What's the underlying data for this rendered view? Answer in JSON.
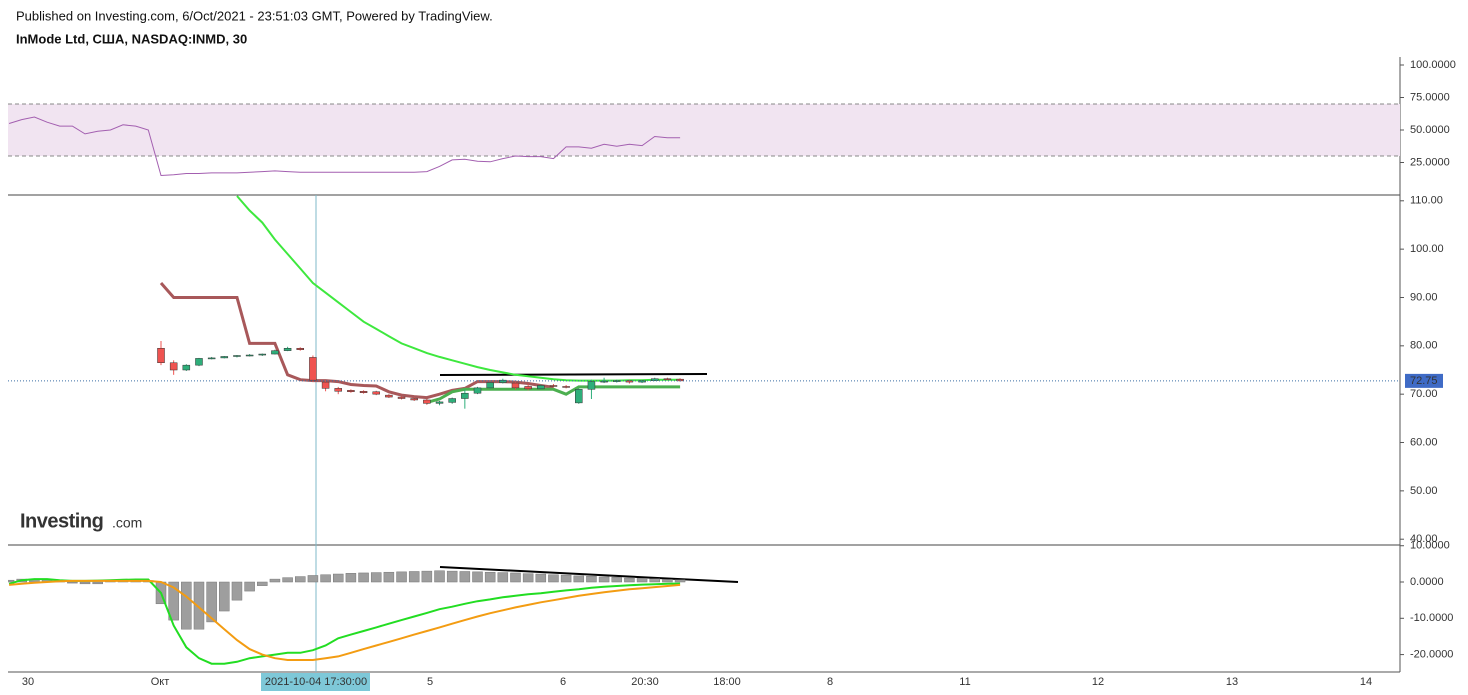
{
  "header": {
    "published": "Published on Investing.com, 6/Oct/2021 - 23:51:03 GMT, Powered by TradingView.",
    "symbol": "InMode Ltd, США, NASDAQ:INMD, 30"
  },
  "logo": {
    "name": "Investing",
    "suffix": ".com"
  },
  "x_labels": [
    "30",
    "Окт",
    "5",
    "6",
    "20:30",
    "18:00",
    "8",
    "11",
    "12",
    "13",
    "14"
  ],
  "crosshair_label": "2021-10-04 17:30:00",
  "chart_data": [
    {
      "type": "line",
      "ylim": [
        0,
        106.15
      ],
      "band": [
        30,
        70
      ],
      "band_color": "#f1e4f1",
      "yticks": [
        {
          "value": 25,
          "label": "25.0000"
        },
        {
          "value": 50,
          "label": "50.0000"
        },
        {
          "value": 75,
          "label": "75.0000"
        },
        {
          "value": 100,
          "label": "100.0000"
        }
      ],
      "series": [
        {
          "type": "line",
          "color": "#a35fb0",
          "width": 1,
          "values": [
            55,
            58,
            60,
            56,
            53,
            53,
            47,
            49,
            50,
            54,
            53,
            50,
            15,
            15.5,
            16.5,
            16.5,
            17,
            17,
            17,
            17.5,
            18,
            18.5,
            18,
            17.5,
            17.5,
            17.5,
            17.5,
            17.5,
            17.5,
            17.5,
            17.5,
            17.5,
            17.5,
            18,
            22,
            27,
            27.5,
            26,
            25.5,
            28,
            30,
            29.5,
            29.5,
            28,
            37,
            37,
            36,
            39,
            37.5,
            39,
            38,
            45,
            44,
            44
          ]
        }
      ]
    },
    {
      "type": "candlestick",
      "ylim": [
        38.8,
        111.2
      ],
      "last_price": 72.75,
      "yticks": [
        {
          "value": 40,
          "label": "40.00"
        },
        {
          "value": 50,
          "label": "50.00"
        },
        {
          "value": 60,
          "label": "60.00"
        },
        {
          "value": 70,
          "label": "70.00"
        },
        {
          "value": 80,
          "label": "80.00"
        },
        {
          "value": 90,
          "label": "90.00"
        },
        {
          "value": 100,
          "label": "100.00"
        },
        {
          "value": 110,
          "label": "110.00"
        }
      ],
      "series": [
        {
          "type": "line",
          "color": "#a8585a",
          "width": 3,
          "values": [
            null,
            null,
            null,
            null,
            null,
            null,
            null,
            null,
            null,
            null,
            null,
            null,
            93,
            90,
            90,
            90,
            90,
            90,
            90,
            80.5,
            80.5,
            80.5,
            74,
            73,
            72.8,
            72.8,
            72.6,
            72,
            71.8,
            71.7,
            70.5,
            69.8,
            69.5,
            69.3,
            70,
            70.8,
            71.2,
            72.6,
            72.6,
            72.6,
            72.5,
            72.2,
            71.8,
            71.4,
            null,
            null,
            null,
            null,
            null,
            null,
            null,
            null,
            null,
            null
          ]
        },
        {
          "type": "line",
          "color": "#3ee83e",
          "width": 2,
          "values": [
            null,
            null,
            null,
            null,
            null,
            null,
            null,
            null,
            null,
            null,
            null,
            null,
            null,
            null,
            null,
            null,
            null,
            null,
            111,
            108,
            105.5,
            102,
            99,
            96,
            93,
            91,
            89,
            87,
            85,
            83.5,
            82,
            80.5,
            79.5,
            78.5,
            77.7,
            77,
            76.3,
            75.6,
            75,
            74.5,
            74,
            73.7,
            73.4,
            73.1,
            72.9,
            72.8,
            72.8,
            72.8,
            72.8,
            72.9,
            72.9,
            73,
            73,
            73
          ]
        },
        {
          "type": "line",
          "color": "#4caf50",
          "width": 3,
          "values": [
            null,
            null,
            null,
            null,
            null,
            null,
            null,
            null,
            null,
            null,
            null,
            null,
            null,
            null,
            null,
            null,
            null,
            null,
            null,
            null,
            null,
            null,
            null,
            null,
            null,
            null,
            null,
            null,
            null,
            null,
            null,
            null,
            null,
            68.3,
            69,
            70.5,
            71,
            71,
            71,
            71,
            71,
            71,
            71,
            71,
            70,
            71.5,
            71.5,
            71.5,
            71.5,
            71.5,
            71.5,
            71.5,
            71.5,
            71.5
          ]
        },
        {
          "type": "candlestick",
          "up_color": "#2eae7a",
          "down_color": "#ef5350",
          "open": [
            null,
            null,
            null,
            null,
            null,
            null,
            null,
            null,
            null,
            null,
            null,
            null,
            79.5,
            76.5,
            75,
            76,
            77.4,
            77.5,
            77.8,
            78,
            78.1,
            78.3,
            79,
            79.5,
            77.6,
            72.5,
            71.2,
            70.8,
            70.6,
            70.5,
            69.8,
            69.4,
            69.1,
            68.8,
            68.1,
            68.3,
            69.1,
            70.2,
            71.3,
            72.4,
            72.3,
            71.6,
            71.1,
            71.8,
            71.6,
            68.2,
            71,
            72.6,
            72.6,
            72.8,
            72.5,
            72.8,
            73.2,
            73.1
          ],
          "high": [
            null,
            null,
            null,
            null,
            null,
            null,
            null,
            null,
            null,
            null,
            null,
            null,
            81,
            77,
            76.2,
            77.5,
            77.7,
            77.9,
            78.1,
            78.3,
            78.4,
            79.2,
            79.8,
            79.7,
            78,
            72.8,
            71.5,
            71,
            70.8,
            70.7,
            70,
            69.6,
            69.3,
            69,
            68.6,
            69.3,
            71,
            71.5,
            72.6,
            73.2,
            72.6,
            72,
            72,
            72.1,
            71.9,
            71.2,
            73,
            73.4,
            73,
            73,
            72.9,
            73.4,
            73.4,
            73.3
          ],
          "low": [
            null,
            null,
            null,
            null,
            null,
            null,
            null,
            null,
            null,
            null,
            null,
            null,
            76,
            74,
            74.8,
            75.8,
            77.2,
            77.4,
            77.6,
            77.8,
            77.9,
            78.2,
            78.9,
            79,
            72.6,
            70.6,
            70,
            70.3,
            70.1,
            69.8,
            69.2,
            68.9,
            68.6,
            67.8,
            67.7,
            68,
            67,
            70,
            71.1,
            72.2,
            71,
            70.8,
            71,
            71.4,
            71.2,
            68,
            69,
            72.3,
            72.4,
            72.2,
            72.3,
            72.7,
            72.9,
            72.6
          ],
          "close": [
            null,
            null,
            null,
            null,
            null,
            null,
            null,
            null,
            null,
            null,
            null,
            null,
            76.5,
            75,
            76,
            77.4,
            77.5,
            77.8,
            78,
            78.1,
            78.3,
            79,
            79.5,
            79.2,
            72.9,
            71.2,
            70.6,
            70.5,
            70.3,
            70,
            69.4,
            69.1,
            68.8,
            68.1,
            68.4,
            69.1,
            70.2,
            71.3,
            72.4,
            72.9,
            71.3,
            71.1,
            71.8,
            71.6,
            71.4,
            71,
            72.6,
            72.7,
            72.8,
            72.5,
            72.8,
            73.2,
            73.1,
            72.75
          ]
        }
      ]
    },
    {
      "type": "bar",
      "ylim": [
        -24.8,
        10.2
      ],
      "yticks": [
        {
          "value": -20,
          "label": "-20.0000"
        },
        {
          "value": -10,
          "label": "-10.0000"
        },
        {
          "value": 0,
          "label": "0.0000"
        },
        {
          "value": 10,
          "label": "10.0000"
        }
      ],
      "series": [
        {
          "type": "bar",
          "color": "#9e9e9e",
          "values": [
            0.5,
            0.8,
            0.8,
            0.6,
            0.3,
            -0.3,
            -0.5,
            -0.5,
            0.2,
            0.5,
            0.5,
            0.4,
            -6,
            -10.5,
            -13,
            -13,
            -11,
            -8,
            -5,
            -2.5,
            -1,
            0.8,
            1.2,
            1.5,
            1.8,
            2,
            2.2,
            2.4,
            2.5,
            2.6,
            2.7,
            2.8,
            2.9,
            3,
            3.1,
            3,
            2.9,
            2.8,
            2.7,
            2.6,
            2.5,
            2.3,
            2.2,
            2,
            1.9,
            1.7,
            1.6,
            1.4,
            1.3,
            1.1,
            1,
            0.9,
            0.7,
            0.6
          ]
        },
        {
          "type": "line",
          "color": "#22dd22",
          "width": 2,
          "values": [
            -0.5,
            0.5,
            0.8,
            0.8,
            0.5,
            0.3,
            0.3,
            0.4,
            0.5,
            0.6,
            0.7,
            0.7,
            -3,
            -12,
            -18,
            -21,
            -22.5,
            -22.5,
            -22,
            -21,
            -20.5,
            -20,
            -19.5,
            -19.5,
            -18.8,
            -17.5,
            -15.5,
            -14.5,
            -13.5,
            -12.5,
            -11.5,
            -10.5,
            -9.5,
            -8.5,
            -7.5,
            -6.8,
            -6,
            -5.3,
            -4.8,
            -4.2,
            -3.8,
            -3.4,
            -3.1,
            -2.7,
            -2.3,
            -2,
            -1.6,
            -1.3,
            -1.1,
            -0.9,
            -0.7,
            -0.6,
            -0.5,
            -0.4
          ]
        },
        {
          "type": "line",
          "color": "#f39c12",
          "width": 2,
          "values": [
            -0.8,
            -0.5,
            -0.2,
            0,
            0.2,
            0.3,
            0.3,
            0.3,
            0.3,
            0.3,
            0.3,
            0.3,
            0,
            -1.5,
            -4,
            -7,
            -10,
            -13,
            -16,
            -18.5,
            -20,
            -21,
            -21.5,
            -21.5,
            -21.5,
            -21,
            -20.5,
            -19.5,
            -18.5,
            -17.5,
            -16.5,
            -15.5,
            -14.5,
            -13.5,
            -12.5,
            -11.5,
            -10.5,
            -9.5,
            -8.6,
            -7.8,
            -7,
            -6.3,
            -5.6,
            -5,
            -4.4,
            -3.8,
            -3.3,
            -2.8,
            -2.4,
            -2,
            -1.7,
            -1.4,
            -1.1,
            -0.8
          ]
        }
      ]
    }
  ]
}
